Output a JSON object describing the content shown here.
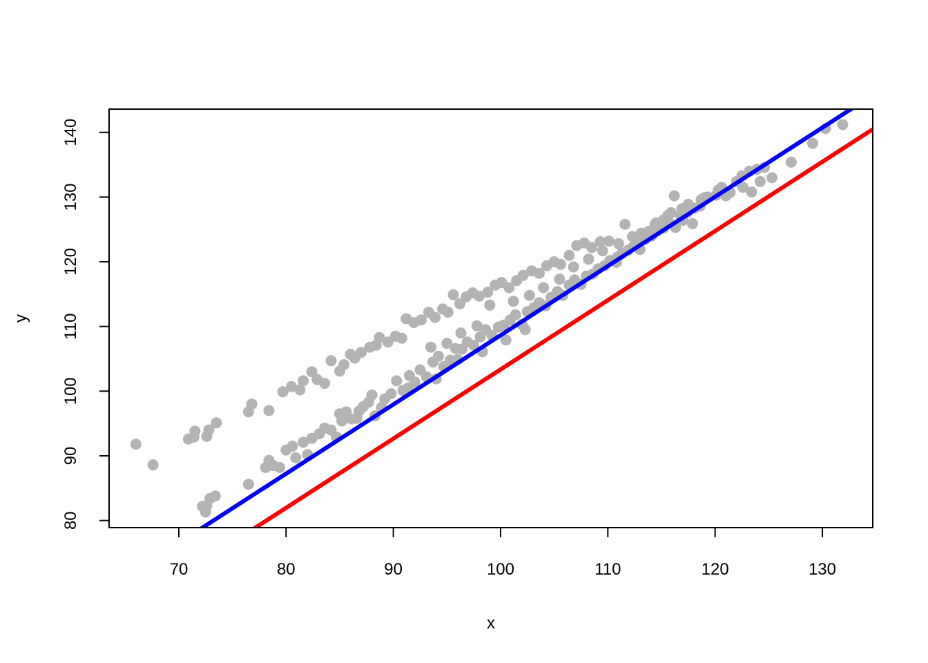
{
  "chart_data": {
    "type": "scatter",
    "title": "",
    "xlabel": "x",
    "ylabel": "y",
    "xlim": [
      63.5,
      134.7
    ],
    "ylim": [
      78.9,
      143.6
    ],
    "xticks": [
      70,
      80,
      90,
      100,
      110,
      120,
      130
    ],
    "yticks": [
      80,
      90,
      100,
      110,
      120,
      130,
      140
    ],
    "xtick_labels": [
      "70",
      "80",
      "90",
      "100",
      "110",
      "120",
      "130"
    ],
    "ytick_labels": [
      "80",
      "90",
      "100",
      "110",
      "120",
      "130",
      "140"
    ],
    "grid": false,
    "legend": "none",
    "point_color": "#b3b3b3",
    "series": [
      {
        "color": "#b3b3b3",
        "points": [
          [
            66.0,
            91.8
          ],
          [
            67.6,
            88.6
          ],
          [
            70.9,
            92.6
          ],
          [
            71.4,
            92.9
          ],
          [
            71.5,
            93.8
          ],
          [
            72.6,
            93.0
          ],
          [
            72.8,
            94.0
          ],
          [
            73.5,
            95.1
          ],
          [
            76.5,
            96.8
          ],
          [
            76.8,
            98.0
          ],
          [
            78.4,
            97.0
          ],
          [
            79.7,
            99.9
          ],
          [
            80.5,
            100.7
          ],
          [
            81.3,
            100.2
          ],
          [
            81.6,
            101.6
          ],
          [
            82.4,
            103.0
          ],
          [
            82.9,
            101.8
          ],
          [
            83.6,
            101.2
          ],
          [
            84.2,
            104.7
          ],
          [
            85.0,
            103.1
          ],
          [
            85.4,
            104.1
          ],
          [
            86.0,
            105.7
          ],
          [
            86.4,
            105.1
          ],
          [
            87.0,
            106.0
          ],
          [
            87.8,
            106.8
          ],
          [
            88.4,
            107.1
          ],
          [
            88.7,
            108.3
          ],
          [
            89.5,
            107.6
          ],
          [
            90.2,
            108.5
          ],
          [
            90.8,
            108.2
          ],
          [
            91.2,
            111.2
          ],
          [
            91.9,
            110.6
          ],
          [
            92.6,
            111.0
          ],
          [
            93.3,
            112.2
          ],
          [
            93.9,
            111.4
          ],
          [
            94.6,
            112.7
          ],
          [
            95.1,
            112.2
          ],
          [
            95.6,
            114.9
          ],
          [
            96.2,
            113.5
          ],
          [
            96.8,
            114.6
          ],
          [
            97.4,
            115.2
          ],
          [
            98.0,
            114.7
          ],
          [
            98.8,
            115.3
          ],
          [
            99.5,
            116.4
          ],
          [
            100.1,
            116.8
          ],
          [
            100.8,
            116.0
          ],
          [
            101.5,
            117.1
          ],
          [
            102.1,
            117.9
          ],
          [
            102.9,
            118.6
          ],
          [
            103.6,
            118.2
          ],
          [
            104.3,
            119.4
          ],
          [
            105.0,
            120.0
          ],
          [
            105.6,
            119.6
          ],
          [
            106.4,
            121.0
          ],
          [
            107.1,
            122.5
          ],
          [
            107.8,
            122.9
          ],
          [
            108.5,
            122.2
          ],
          [
            109.3,
            123.1
          ],
          [
            110.1,
            123.2
          ],
          [
            111.0,
            122.8
          ],
          [
            111.6,
            125.8
          ],
          [
            112.3,
            123.9
          ],
          [
            113.1,
            124.4
          ],
          [
            113.8,
            124.7
          ],
          [
            114.5,
            126.0
          ],
          [
            115.2,
            126.5
          ],
          [
            115.9,
            127.6
          ],
          [
            116.2,
            130.2
          ],
          [
            116.9,
            128.2
          ],
          [
            117.5,
            128.9
          ],
          [
            118.1,
            128.3
          ],
          [
            118.7,
            129.6
          ],
          [
            119.3,
            130.0
          ],
          [
            120.1,
            130.3
          ],
          [
            120.6,
            131.5
          ],
          [
            121.4,
            130.7
          ],
          [
            122.0,
            132.4
          ],
          [
            122.5,
            133.3
          ],
          [
            123.2,
            134.0
          ],
          [
            123.9,
            134.3
          ],
          [
            124.6,
            134.6
          ],
          [
            72.2,
            82.2
          ],
          [
            72.5,
            81.3
          ],
          [
            72.6,
            82.3
          ],
          [
            72.9,
            83.4
          ],
          [
            73.4,
            83.8
          ],
          [
            76.5,
            85.6
          ],
          [
            78.1,
            88.2
          ],
          [
            78.4,
            89.3
          ],
          [
            78.8,
            88.5
          ],
          [
            79.4,
            88.2
          ],
          [
            80.0,
            90.9
          ],
          [
            80.6,
            91.5
          ],
          [
            80.9,
            89.7
          ],
          [
            81.6,
            92.1
          ],
          [
            82.0,
            90.2
          ],
          [
            82.4,
            92.7
          ],
          [
            83.1,
            93.4
          ],
          [
            83.6,
            94.3
          ],
          [
            84.2,
            94.0
          ],
          [
            84.7,
            92.9
          ],
          [
            85.0,
            96.5
          ],
          [
            85.6,
            96.8
          ],
          [
            86.1,
            95.7
          ],
          [
            86.6,
            95.8
          ],
          [
            87.2,
            97.6
          ],
          [
            87.7,
            98.3
          ],
          [
            88.3,
            96.2
          ],
          [
            88.9,
            97.5
          ],
          [
            89.2,
            98.8
          ],
          [
            89.8,
            99.6
          ],
          [
            90.3,
            101.6
          ],
          [
            90.9,
            100.1
          ],
          [
            91.5,
            102.4
          ],
          [
            92.0,
            101.4
          ],
          [
            92.5,
            103.3
          ],
          [
            93.1,
            102.2
          ],
          [
            93.7,
            104.5
          ],
          [
            94.2,
            105.4
          ],
          [
            94.7,
            103.8
          ],
          [
            95.3,
            104.8
          ],
          [
            95.8,
            106.6
          ],
          [
            96.4,
            106.5
          ],
          [
            96.9,
            107.6
          ],
          [
            97.5,
            107.1
          ],
          [
            98.1,
            108.4
          ],
          [
            98.6,
            109.5
          ],
          [
            99.2,
            108.6
          ],
          [
            99.8,
            109.9
          ],
          [
            100.3,
            110.2
          ],
          [
            100.9,
            111.0
          ],
          [
            101.4,
            111.8
          ],
          [
            102.0,
            110.3
          ],
          [
            102.5,
            112.3
          ],
          [
            103.1,
            112.9
          ],
          [
            103.6,
            113.7
          ],
          [
            104.2,
            113.2
          ],
          [
            104.7,
            114.5
          ],
          [
            105.3,
            115.4
          ],
          [
            105.8,
            114.8
          ],
          [
            106.4,
            116.4
          ],
          [
            106.9,
            117.2
          ],
          [
            107.5,
            116.5
          ],
          [
            108.0,
            117.8
          ],
          [
            108.6,
            118.1
          ],
          [
            109.1,
            118.9
          ],
          [
            109.7,
            119.4
          ],
          [
            110.2,
            120.2
          ],
          [
            110.8,
            119.9
          ],
          [
            111.3,
            121.3
          ],
          [
            111.9,
            121.8
          ],
          [
            112.4,
            122.4
          ],
          [
            113.0,
            121.9
          ],
          [
            113.5,
            123.5
          ],
          [
            114.1,
            124.0
          ],
          [
            114.6,
            124.8
          ],
          [
            115.2,
            125.2
          ],
          [
            115.7,
            126.1
          ],
          [
            116.3,
            125.3
          ],
          [
            116.8,
            127.1
          ],
          [
            117.4,
            127.6
          ],
          [
            117.9,
            125.9
          ],
          [
            119.0,
            129.9
          ],
          [
            121.0,
            130.2
          ],
          [
            122.6,
            131.5
          ],
          [
            123.4,
            130.8
          ],
          [
            124.2,
            132.4
          ],
          [
            125.3,
            133.0
          ],
          [
            127.1,
            135.4
          ],
          [
            129.1,
            138.3
          ],
          [
            130.3,
            140.6
          ],
          [
            131.9,
            141.2
          ],
          [
            85.2,
            95.4
          ],
          [
            86.8,
            96.9
          ],
          [
            88.0,
            99.4
          ],
          [
            91.4,
            100.5
          ],
          [
            93.5,
            106.8
          ],
          [
            95.0,
            107.4
          ],
          [
            96.3,
            109.0
          ],
          [
            97.8,
            110.1
          ],
          [
            99.0,
            113.3
          ],
          [
            101.2,
            113.9
          ],
          [
            102.7,
            114.8
          ],
          [
            104.0,
            116.0
          ],
          [
            105.5,
            117.3
          ],
          [
            106.8,
            119.2
          ],
          [
            108.2,
            120.4
          ],
          [
            109.5,
            121.7
          ],
          [
            110.9,
            120.7
          ],
          [
            112.8,
            123.1
          ],
          [
            114.4,
            125.7
          ],
          [
            115.6,
            127.2
          ],
          [
            117.0,
            126.4
          ],
          [
            118.6,
            128.6
          ],
          [
            120.3,
            131.1
          ],
          [
            94.0,
            101.9
          ],
          [
            96.0,
            104.9
          ],
          [
            98.3,
            106.1
          ],
          [
            100.5,
            107.9
          ],
          [
            102.3,
            109.5
          ]
        ]
      }
    ],
    "lines": [
      {
        "color": "#0000ff",
        "intercept": 1.64,
        "slope": 1.07
      },
      {
        "color": "#ff0000",
        "intercept": -3.64,
        "slope": 1.07
      }
    ]
  }
}
